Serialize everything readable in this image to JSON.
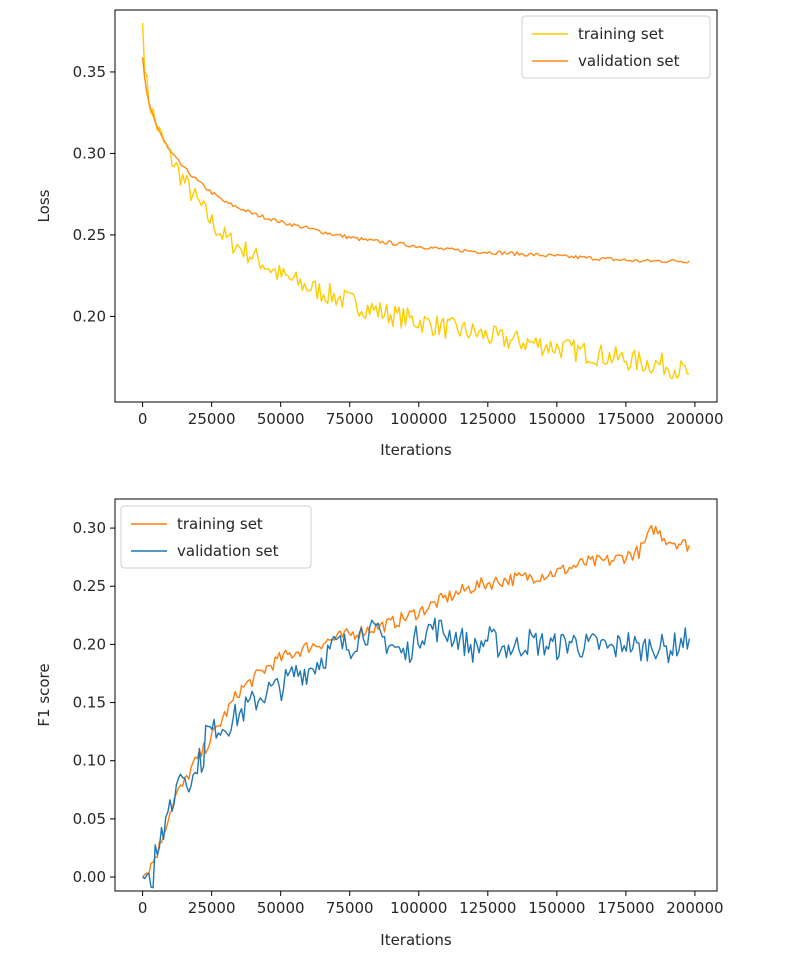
{
  "figure": {
    "description_free": true
  },
  "chart_data": [
    {
      "type": "line",
      "xlabel": "Iterations",
      "ylabel": "Loss",
      "xlim": [
        -10000,
        208000
      ],
      "ylim": [
        0.1475,
        0.388
      ],
      "xticks": [
        0,
        25000,
        50000,
        75000,
        100000,
        125000,
        150000,
        175000,
        200000
      ],
      "yticks": [
        0.2,
        0.25,
        0.3,
        0.35
      ],
      "ytick_labels": [
        "0.20",
        "0.25",
        "0.30",
        "0.35"
      ],
      "legend": "top-right",
      "series": [
        {
          "name": "training set",
          "color": "#ffcc00",
          "noise": 0.007,
          "x": [
            0,
            1000,
            2000,
            4000,
            6000,
            8000,
            10000,
            15000,
            20000,
            25000,
            30000,
            40000,
            50000,
            60000,
            70000,
            80000,
            90000,
            100000,
            110000,
            120000,
            130000,
            140000,
            150000,
            160000,
            170000,
            180000,
            190000,
            198000
          ],
          "y": [
            0.38,
            0.35,
            0.335,
            0.323,
            0.313,
            0.305,
            0.298,
            0.283,
            0.27,
            0.258,
            0.248,
            0.237,
            0.225,
            0.218,
            0.212,
            0.206,
            0.201,
            0.197,
            0.193,
            0.19,
            0.186,
            0.184,
            0.181,
            0.178,
            0.175,
            0.172,
            0.17,
            0.165
          ]
        },
        {
          "name": "validation set",
          "color": "#ff8c1a",
          "noise": 0.0012,
          "x": [
            0,
            1000,
            2000,
            4000,
            6000,
            8000,
            10000,
            15000,
            20000,
            25000,
            30000,
            40000,
            50000,
            60000,
            70000,
            80000,
            90000,
            100000,
            110000,
            120000,
            130000,
            140000,
            150000,
            160000,
            170000,
            180000,
            190000,
            198000
          ],
          "y": [
            0.359,
            0.341,
            0.332,
            0.322,
            0.314,
            0.307,
            0.301,
            0.291,
            0.283,
            0.276,
            0.27,
            0.263,
            0.258,
            0.254,
            0.25,
            0.247,
            0.245,
            0.243,
            0.241,
            0.24,
            0.239,
            0.238,
            0.237,
            0.236,
            0.235,
            0.234,
            0.234,
            0.234
          ]
        }
      ]
    },
    {
      "type": "line",
      "xlabel": "Iterations",
      "ylabel": "F1 score",
      "xlim": [
        -10000,
        208000
      ],
      "ylim": [
        -0.012,
        0.325
      ],
      "xticks": [
        0,
        25000,
        50000,
        75000,
        100000,
        125000,
        150000,
        175000,
        200000
      ],
      "yticks": [
        0.0,
        0.05,
        0.1,
        0.15,
        0.2,
        0.25,
        0.3
      ],
      "ytick_labels": [
        "0.00",
        "0.05",
        "0.10",
        "0.15",
        "0.20",
        "0.25",
        "0.30"
      ],
      "legend": "top-left",
      "series": [
        {
          "name": "training set",
          "color": "#ff7f0e",
          "noise": 0.006,
          "x": [
            0,
            3000,
            6000,
            9000,
            12000,
            15000,
            18000,
            21000,
            25000,
            30000,
            35000,
            40000,
            45000,
            50000,
            60000,
            70000,
            80000,
            90000,
            100000,
            110000,
            120000,
            130000,
            140000,
            150000,
            160000,
            170000,
            180000,
            185000,
            190000,
            198000
          ],
          "y": [
            0.0,
            0.01,
            0.025,
            0.05,
            0.07,
            0.08,
            0.095,
            0.105,
            0.12,
            0.14,
            0.16,
            0.17,
            0.18,
            0.188,
            0.198,
            0.205,
            0.212,
            0.218,
            0.228,
            0.24,
            0.25,
            0.255,
            0.258,
            0.262,
            0.27,
            0.272,
            0.28,
            0.3,
            0.29,
            0.285
          ]
        },
        {
          "name": "validation set",
          "color": "#1f77b4",
          "noise": 0.012,
          "x": [
            0,
            4000,
            4500,
            6000,
            7000,
            9000,
            9500,
            12000,
            12500,
            15000,
            15500,
            19000,
            19500,
            22000,
            22500,
            26000,
            26500,
            30000,
            35000,
            40000,
            45000,
            50000,
            55000,
            60000,
            65000,
            70000,
            75000,
            80000,
            85000,
            90000,
            95000,
            100000,
            105000,
            110000,
            115000,
            120000,
            125000,
            130000,
            135000,
            140000,
            145000,
            150000,
            155000,
            160000,
            165000,
            170000,
            175000,
            180000,
            185000,
            190000,
            195000,
            198000
          ],
          "y": [
            0.0,
            0.0,
            0.03,
            0.03,
            0.04,
            0.04,
            0.065,
            0.065,
            0.09,
            0.09,
            0.085,
            0.085,
            0.1,
            0.1,
            0.125,
            0.125,
            0.13,
            0.13,
            0.14,
            0.15,
            0.16,
            0.163,
            0.175,
            0.178,
            0.188,
            0.2,
            0.198,
            0.212,
            0.208,
            0.2,
            0.19,
            0.208,
            0.215,
            0.21,
            0.205,
            0.195,
            0.205,
            0.198,
            0.197,
            0.203,
            0.2,
            0.198,
            0.203,
            0.198,
            0.2,
            0.195,
            0.203,
            0.195,
            0.2,
            0.195,
            0.202,
            0.205
          ]
        }
      ]
    }
  ]
}
